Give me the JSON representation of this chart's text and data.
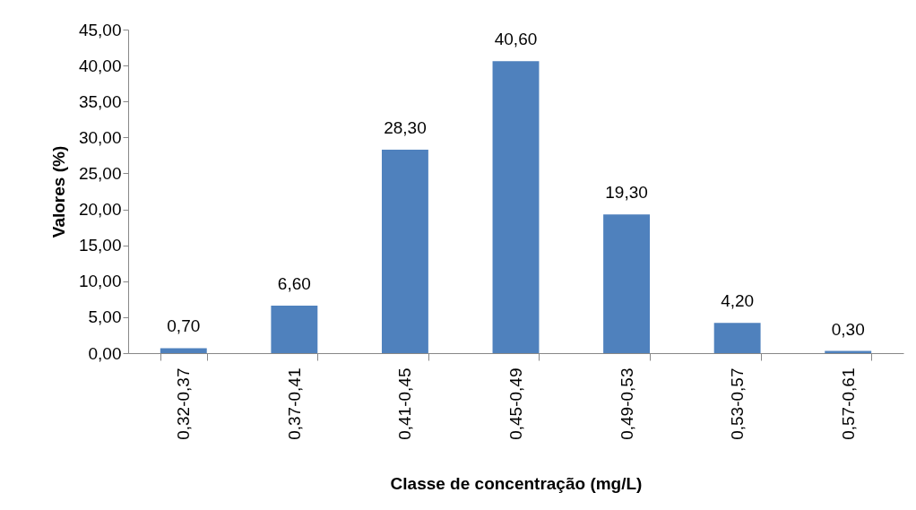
{
  "chart_data": {
    "type": "bar",
    "xlabel": "Classe de concentração (mg/L)",
    "ylabel": "Valores (%)",
    "categories": [
      "0,32-0,37",
      "0,37-0,41",
      "0,41-0,45",
      "0,45-0,49",
      "0,49-0,53",
      "0,53-0,57",
      "0,57-0,61"
    ],
    "values": [
      0.7,
      6.6,
      28.3,
      40.6,
      19.3,
      4.2,
      0.3
    ],
    "value_labels": [
      "0,70",
      "6,60",
      "28,30",
      "40,60",
      "19,30",
      "4,20",
      "0,30"
    ],
    "color": "#4f81bd",
    "ylim": [
      0,
      45
    ],
    "yticks": [
      {
        "value": 0,
        "label": "0,00"
      },
      {
        "value": 5,
        "label": "5,00"
      },
      {
        "value": 10,
        "label": "10,00"
      },
      {
        "value": 15,
        "label": "15,00"
      },
      {
        "value": 20,
        "label": "20,00"
      },
      {
        "value": 25,
        "label": "25,00"
      },
      {
        "value": 30,
        "label": "30,00"
      },
      {
        "value": 35,
        "label": "35,00"
      },
      {
        "value": 40,
        "label": "40,00"
      },
      {
        "value": 45,
        "label": "45,00"
      }
    ],
    "grid": false
  }
}
